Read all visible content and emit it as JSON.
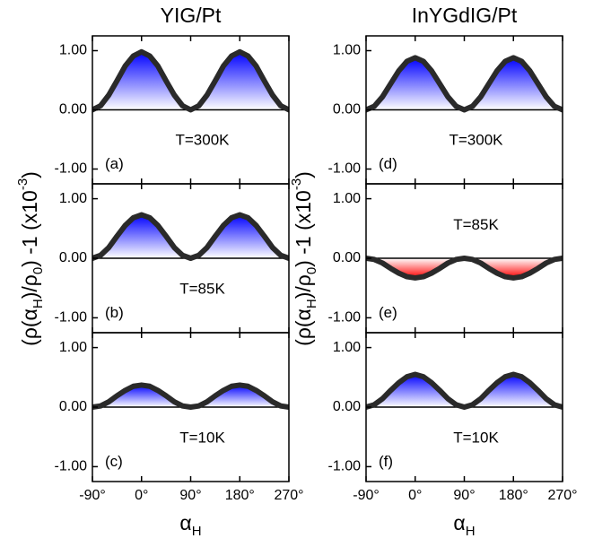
{
  "chart_data": [
    {
      "type": "area",
      "title": "YIG/Pt",
      "panel_label": "(a)",
      "annotation": "T=300K",
      "color": "#0000ff",
      "x": [
        -90,
        -75,
        -60,
        -45,
        -30,
        -15,
        0,
        15,
        30,
        45,
        60,
        75,
        90,
        105,
        120,
        135,
        150,
        165,
        180,
        195,
        210,
        225,
        240,
        255,
        270
      ],
      "values": [
        0,
        0.07,
        0.25,
        0.49,
        0.74,
        0.91,
        0.98,
        0.91,
        0.74,
        0.49,
        0.25,
        0.07,
        0,
        0.07,
        0.25,
        0.49,
        0.74,
        0.91,
        0.98,
        0.91,
        0.74,
        0.49,
        0.25,
        0.07,
        0
      ],
      "xlim": [
        -90,
        270
      ],
      "xticks": [
        -90,
        0,
        90,
        180,
        270
      ],
      "ylim": [
        -1.25,
        1.25
      ],
      "yticks": [
        {
          "value": -1,
          "label": "-1.00"
        },
        {
          "value": 0,
          "label": "0.00"
        },
        {
          "value": 1,
          "label": "1.00"
        }
      ]
    },
    {
      "type": "area",
      "panel_label": "(b)",
      "annotation": "T=85K",
      "color": "#0000ff",
      "ylabel": [
        "(ρ(α",
        "H",
        ")/ρ",
        "0",
        ") -1 (x10",
        "-3",
        ")"
      ],
      "x": [
        -90,
        -75,
        -60,
        -45,
        -30,
        -15,
        0,
        15,
        30,
        45,
        60,
        75,
        90,
        105,
        120,
        135,
        150,
        165,
        180,
        195,
        210,
        225,
        240,
        255,
        270
      ],
      "values": [
        0,
        0.05,
        0.18,
        0.37,
        0.55,
        0.68,
        0.73,
        0.68,
        0.55,
        0.37,
        0.18,
        0.05,
        0,
        0.05,
        0.18,
        0.37,
        0.55,
        0.68,
        0.73,
        0.68,
        0.55,
        0.37,
        0.18,
        0.05,
        0
      ],
      "xlim": [
        -90,
        270
      ],
      "xticks": [
        -90,
        0,
        90,
        180,
        270
      ],
      "ylim": [
        -1.25,
        1.25
      ],
      "yticks": [
        {
          "value": -1,
          "label": "-1.00"
        },
        {
          "value": 0,
          "label": "0.00"
        },
        {
          "value": 1,
          "label": "1.00"
        }
      ]
    },
    {
      "type": "area",
      "panel_label": "(c)",
      "annotation": "T=10K",
      "color": "#0000ff",
      "xlabel": [
        "α",
        "H"
      ],
      "x": [
        -90,
        -75,
        -60,
        -45,
        -30,
        -15,
        0,
        15,
        30,
        45,
        60,
        75,
        90,
        105,
        120,
        135,
        150,
        165,
        180,
        195,
        210,
        225,
        240,
        255,
        270
      ],
      "values": [
        0,
        0.02,
        0.09,
        0.19,
        0.28,
        0.35,
        0.37,
        0.35,
        0.28,
        0.19,
        0.09,
        0.02,
        0,
        0.02,
        0.09,
        0.19,
        0.28,
        0.35,
        0.37,
        0.35,
        0.28,
        0.19,
        0.09,
        0.02,
        0
      ],
      "xlim": [
        -90,
        270
      ],
      "xticks": [
        {
          "value": -90,
          "label": "-90°"
        },
        {
          "value": 0,
          "label": "0°"
        },
        {
          "value": 90,
          "label": "90°"
        },
        {
          "value": 180,
          "label": "180°"
        },
        {
          "value": 270,
          "label": "270°"
        }
      ],
      "ylim": [
        -1.25,
        1.25
      ],
      "yticks": [
        {
          "value": -1,
          "label": "-1.00"
        },
        {
          "value": 0,
          "label": "0.00"
        },
        {
          "value": 1,
          "label": "1.00"
        }
      ]
    },
    {
      "type": "area",
      "title": "InYGdIG/Pt",
      "panel_label": "(d)",
      "annotation": "T=300K",
      "color": "#0000ff",
      "x": [
        -90,
        -75,
        -60,
        -45,
        -30,
        -15,
        0,
        15,
        30,
        45,
        60,
        75,
        90,
        105,
        120,
        135,
        150,
        165,
        180,
        195,
        210,
        225,
        240,
        255,
        270
      ],
      "values": [
        0,
        0.06,
        0.22,
        0.44,
        0.66,
        0.82,
        0.88,
        0.82,
        0.66,
        0.44,
        0.22,
        0.06,
        0,
        0.06,
        0.22,
        0.44,
        0.66,
        0.82,
        0.88,
        0.82,
        0.66,
        0.44,
        0.22,
        0.06,
        0
      ],
      "xlim": [
        -90,
        270
      ],
      "xticks": [
        -90,
        0,
        90,
        180,
        270
      ],
      "ylim": [
        -1.25,
        1.25
      ],
      "yticks": [
        {
          "value": -1,
          "label": "-1.00"
        },
        {
          "value": 0,
          "label": "0.00"
        },
        {
          "value": 1,
          "label": "1.00"
        }
      ]
    },
    {
      "type": "area",
      "panel_label": "(e)",
      "annotation": "T=85K",
      "color": "#ff0000",
      "ylabel": [
        "(ρ(α",
        "H",
        ")/ρ",
        "0",
        ") -1 (x10",
        "-3",
        ")"
      ],
      "x": [
        -90,
        -75,
        -60,
        -45,
        -30,
        -15,
        0,
        15,
        30,
        45,
        60,
        75,
        90,
        105,
        120,
        135,
        150,
        165,
        180,
        195,
        210,
        225,
        240,
        255,
        270
      ],
      "values": [
        0,
        -0.02,
        -0.08,
        -0.17,
        -0.25,
        -0.31,
        -0.33,
        -0.31,
        -0.25,
        -0.17,
        -0.08,
        -0.02,
        0,
        -0.02,
        -0.08,
        -0.17,
        -0.25,
        -0.31,
        -0.33,
        -0.31,
        -0.25,
        -0.17,
        -0.08,
        -0.02,
        0
      ],
      "xlim": [
        -90,
        270
      ],
      "xticks": [
        -90,
        0,
        90,
        180,
        270
      ],
      "ylim": [
        -1.25,
        1.25
      ],
      "yticks": [
        {
          "value": -1,
          "label": "-1.00"
        },
        {
          "value": 0,
          "label": "0.00"
        },
        {
          "value": 1,
          "label": "1.00"
        }
      ]
    },
    {
      "type": "area",
      "panel_label": "(f)",
      "annotation": "T=10K",
      "color": "#0000ff",
      "xlabel": [
        "α",
        "H"
      ],
      "x": [
        -90,
        -75,
        -60,
        -45,
        -30,
        -15,
        0,
        15,
        30,
        45,
        60,
        75,
        90,
        105,
        120,
        135,
        150,
        165,
        180,
        195,
        210,
        225,
        240,
        255,
        270
      ],
      "values": [
        0,
        0.04,
        0.14,
        0.28,
        0.41,
        0.51,
        0.55,
        0.51,
        0.41,
        0.28,
        0.14,
        0.04,
        0,
        0.04,
        0.14,
        0.28,
        0.41,
        0.51,
        0.55,
        0.51,
        0.41,
        0.28,
        0.14,
        0.04,
        0
      ],
      "xlim": [
        -90,
        270
      ],
      "xticks": [
        {
          "value": -90,
          "label": "-90°"
        },
        {
          "value": 0,
          "label": "0°"
        },
        {
          "value": 90,
          "label": "90°"
        },
        {
          "value": 180,
          "label": "180°"
        },
        {
          "value": 270,
          "label": "270°"
        }
      ],
      "ylim": [
        -1.25,
        1.25
      ],
      "yticks": [
        {
          "value": -1,
          "label": "-1.00"
        },
        {
          "value": 0,
          "label": "0.00"
        },
        {
          "value": 1,
          "label": "1.00"
        }
      ]
    }
  ]
}
